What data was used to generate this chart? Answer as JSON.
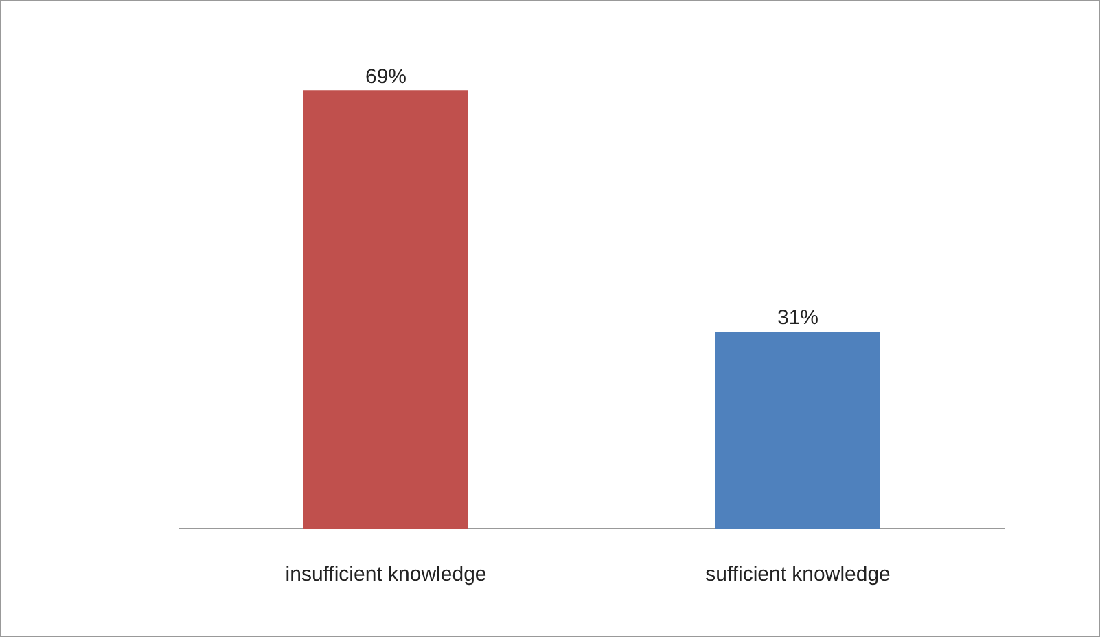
{
  "chart_data": {
    "type": "bar",
    "categories": [
      "insufficient knowledge",
      "sufficient knowledge"
    ],
    "values": [
      69,
      31
    ],
    "colors": [
      "#c0504d",
      "#4f81bd"
    ],
    "value_labels": [
      "69%",
      "31%"
    ],
    "legend": false,
    "grid": false
  }
}
